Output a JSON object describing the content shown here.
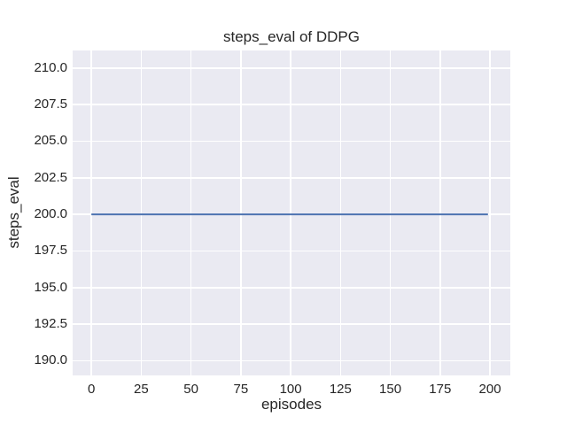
{
  "chart_data": {
    "type": "line",
    "title": "steps_eval of DDPG",
    "xlabel": "episodes",
    "ylabel": "steps_eval",
    "x_ticks": [
      0,
      25,
      50,
      75,
      100,
      125,
      150,
      175,
      200
    ],
    "x_tick_labels": [
      "0",
      "25",
      "50",
      "75",
      "100",
      "125",
      "150",
      "175",
      "200"
    ],
    "y_ticks": [
      190.0,
      192.5,
      195.0,
      197.5,
      200.0,
      202.5,
      205.0,
      207.5,
      210.0
    ],
    "y_tick_labels": [
      "190.0",
      "192.5",
      "195.0",
      "197.5",
      "200.0",
      "202.5",
      "205.0",
      "207.5",
      "210.0"
    ],
    "xlim": [
      -9.4,
      210.2
    ],
    "ylim": [
      189.0,
      211.2
    ],
    "grid": true,
    "legend_position": "none",
    "plot_background": "#EAEAF2",
    "grid_color": "#FFFFFF",
    "text_color": "#262626",
    "series": [
      {
        "name": "steps_eval of DDPG",
        "color": "#4C72B0",
        "line_width": 2,
        "x": [
          0,
          199
        ],
        "y": [
          200.0,
          200.0
        ]
      }
    ]
  }
}
